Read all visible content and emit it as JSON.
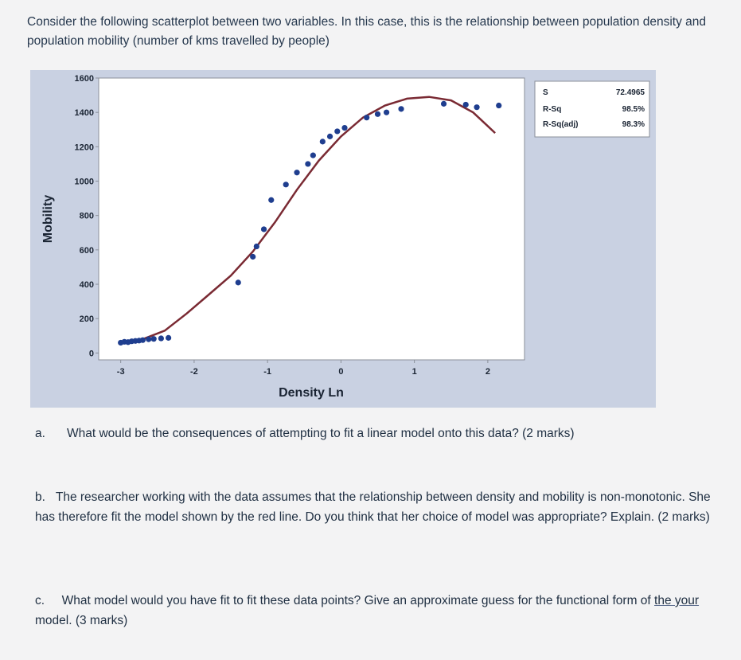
{
  "intro": "Consider the following scatterplot between two variables. In this case, this is the relationship between population density and population mobility (number of kms travelled by people)",
  "colors": {
    "points": "#1f3e8f",
    "fit_line": "#7a2a33",
    "plot_bg": "#ffffff",
    "panel_bg": "#c9d1e2"
  },
  "chart_data": {
    "type": "scatter",
    "title": "",
    "xlabel": "Density Ln",
    "ylabel": "Mobility",
    "xlim": [
      -3.3,
      2.5
    ],
    "ylim": [
      -40,
      1600
    ],
    "x_ticks": [
      -3,
      -2,
      -1,
      0,
      1,
      2
    ],
    "x_tick_labels": [
      "-3",
      "-2",
      "-1",
      "0",
      "1",
      "2"
    ],
    "y_ticks": [
      0,
      200,
      400,
      600,
      800,
      1000,
      1200,
      1400,
      1600
    ],
    "y_tick_labels": [
      "0",
      "200",
      "400",
      "600",
      "800",
      "1000",
      "1200",
      "1400",
      "1600"
    ],
    "grid": false,
    "points": [
      {
        "x": -3.0,
        "y": 60
      },
      {
        "x": -2.95,
        "y": 65
      },
      {
        "x": -2.9,
        "y": 63
      },
      {
        "x": -2.85,
        "y": 68
      },
      {
        "x": -2.8,
        "y": 70
      },
      {
        "x": -2.75,
        "y": 72
      },
      {
        "x": -2.7,
        "y": 75
      },
      {
        "x": -2.62,
        "y": 80
      },
      {
        "x": -2.55,
        "y": 82
      },
      {
        "x": -2.45,
        "y": 85
      },
      {
        "x": -2.35,
        "y": 88
      },
      {
        "x": -1.4,
        "y": 410
      },
      {
        "x": -1.2,
        "y": 560
      },
      {
        "x": -1.15,
        "y": 620
      },
      {
        "x": -1.05,
        "y": 720
      },
      {
        "x": -0.95,
        "y": 890
      },
      {
        "x": -0.75,
        "y": 980
      },
      {
        "x": -0.6,
        "y": 1050
      },
      {
        "x": -0.45,
        "y": 1100
      },
      {
        "x": -0.38,
        "y": 1150
      },
      {
        "x": -0.25,
        "y": 1230
      },
      {
        "x": -0.15,
        "y": 1260
      },
      {
        "x": -0.05,
        "y": 1290
      },
      {
        "x": 0.05,
        "y": 1310
      },
      {
        "x": 0.35,
        "y": 1370
      },
      {
        "x": 0.5,
        "y": 1390
      },
      {
        "x": 0.62,
        "y": 1400
      },
      {
        "x": 0.82,
        "y": 1420
      },
      {
        "x": 1.4,
        "y": 1450
      },
      {
        "x": 1.7,
        "y": 1445
      },
      {
        "x": 1.85,
        "y": 1430
      },
      {
        "x": 2.15,
        "y": 1440
      }
    ],
    "fit_line": {
      "x": [
        -3.0,
        -2.7,
        -2.4,
        -2.1,
        -1.8,
        -1.5,
        -1.2,
        -0.9,
        -0.6,
        -0.3,
        0.0,
        0.3,
        0.6,
        0.9,
        1.2,
        1.5,
        1.8,
        2.0,
        2.1
      ],
      "y": [
        60,
        80,
        130,
        230,
        340,
        450,
        590,
        760,
        950,
        1120,
        1260,
        1370,
        1440,
        1480,
        1490,
        1470,
        1400,
        1320,
        1280
      ]
    },
    "stats_box": {
      "labels": [
        "S",
        "R-Sq",
        "R-Sq(adj)"
      ],
      "values": [
        "72.4965",
        "98.5%",
        "98.3%"
      ]
    }
  },
  "questions": [
    {
      "marker": "a.",
      "text": "What would be the consequences of attempting to fit a linear model onto this data? (2 marks)"
    },
    {
      "marker": "b.",
      "text": "The researcher working with the data assumes that the relationship between density and mobility is non-monotonic. She has therefore fit the model shown by the red line. Do you think that her choice of model was appropriate? Explain. (2 marks)"
    },
    {
      "marker": "c.",
      "text_before": "What model would you have fit to fit these data points? Give an approximate guess for the functional form of ",
      "text_underlined": "the your",
      "text_after": " model.  (3 marks)"
    }
  ]
}
